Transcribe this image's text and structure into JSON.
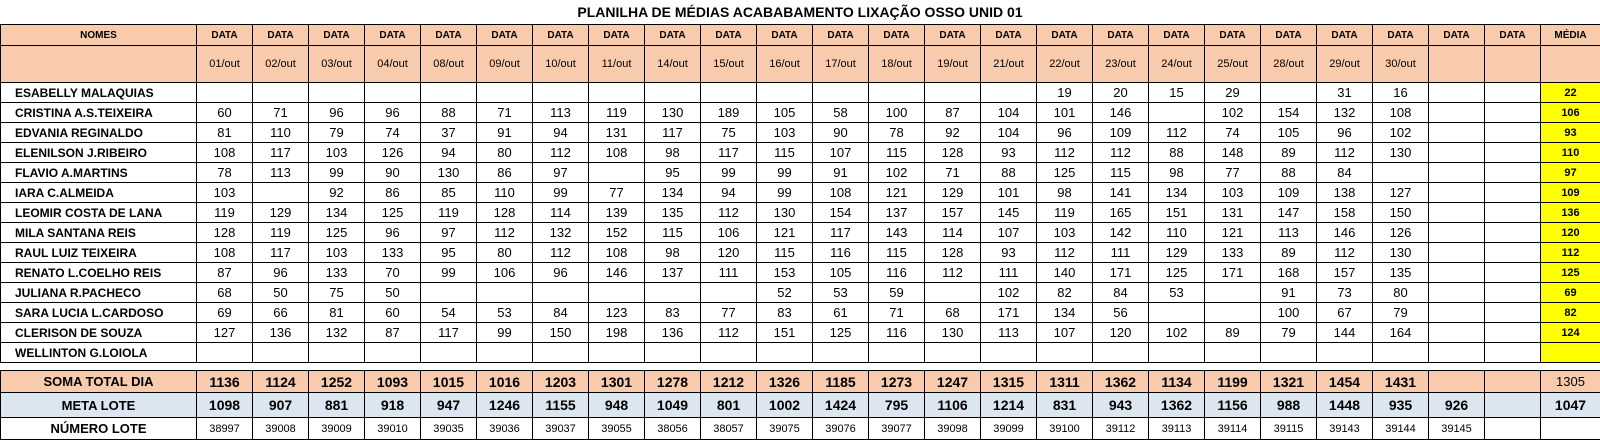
{
  "title": "PLANILHA DE MÉDIAS ACABABAMENTO LIXAÇÃO OSSO UNID 01",
  "header": {
    "names_label": "NOMES",
    "col_label": "DATA",
    "media_label": "MÉDIA",
    "dates": [
      "01/out",
      "02/out",
      "03/out",
      "04/out",
      "08/out",
      "09/out",
      "10/out",
      "11/out",
      "14/out",
      "15/out",
      "16/out",
      "17/out",
      "18/out",
      "19/out",
      "21/out",
      "22/out",
      "23/out",
      "24/out",
      "25/out",
      "28/out",
      "29/out",
      "30/out",
      "",
      ""
    ]
  },
  "employees": [
    {
      "name": "ESABELLY MALAQUIAS",
      "values": [
        "",
        "",
        "",
        "",
        "",
        "",
        "",
        "",
        "",
        "",
        "",
        "",
        "",
        "",
        "",
        "19",
        "20",
        "15",
        "29",
        "",
        "31",
        "16",
        "",
        ""
      ],
      "media": "22"
    },
    {
      "name": "CRISTINA A.S.TEIXEIRA",
      "values": [
        "60",
        "71",
        "96",
        "96",
        "88",
        "71",
        "113",
        "119",
        "130",
        "189",
        "105",
        "58",
        "100",
        "87",
        "104",
        "101",
        "146",
        "",
        "102",
        "154",
        "132",
        "108",
        "",
        ""
      ],
      "media": "106"
    },
    {
      "name": "EDVANIA REGINALDO",
      "values": [
        "81",
        "110",
        "79",
        "74",
        "37",
        "91",
        "94",
        "131",
        "117",
        "75",
        "103",
        "90",
        "78",
        "92",
        "104",
        "96",
        "109",
        "112",
        "74",
        "105",
        "96",
        "102",
        "",
        ""
      ],
      "media": "93"
    },
    {
      "name": "ELENILSON J.RIBEIRO",
      "values": [
        "108",
        "117",
        "103",
        "126",
        "94",
        "80",
        "112",
        "108",
        "98",
        "117",
        "115",
        "107",
        "115",
        "128",
        "93",
        "112",
        "112",
        "88",
        "148",
        "89",
        "112",
        "130",
        "",
        ""
      ],
      "media": "110"
    },
    {
      "name": "FLAVIO A.MARTINS",
      "values": [
        "78",
        "113",
        "99",
        "90",
        "130",
        "86",
        "97",
        "",
        "95",
        "99",
        "99",
        "91",
        "102",
        "71",
        "88",
        "125",
        "115",
        "98",
        "77",
        "88",
        "84",
        "",
        "",
        ""
      ],
      "media": "97"
    },
    {
      "name": "IARA C.ALMEIDA",
      "values": [
        "103",
        "",
        "92",
        "86",
        "85",
        "110",
        "99",
        "77",
        "134",
        "94",
        "99",
        "108",
        "121",
        "129",
        "101",
        "98",
        "141",
        "134",
        "103",
        "109",
        "138",
        "127",
        "",
        ""
      ],
      "media": "109"
    },
    {
      "name": "LEOMIR COSTA DE LANA",
      "values": [
        "119",
        "129",
        "134",
        "125",
        "119",
        "128",
        "114",
        "139",
        "135",
        "112",
        "130",
        "154",
        "137",
        "157",
        "145",
        "119",
        "165",
        "151",
        "131",
        "147",
        "158",
        "150",
        "",
        ""
      ],
      "media": "136"
    },
    {
      "name": "MILA SANTANA REIS",
      "values": [
        "128",
        "119",
        "125",
        "96",
        "97",
        "112",
        "132",
        "152",
        "115",
        "106",
        "121",
        "117",
        "143",
        "114",
        "107",
        "103",
        "142",
        "110",
        "121",
        "113",
        "146",
        "126",
        "",
        ""
      ],
      "media": "120"
    },
    {
      "name": "RAUL LUIZ TEIXEIRA",
      "values": [
        "108",
        "117",
        "103",
        "133",
        "95",
        "80",
        "112",
        "108",
        "98",
        "120",
        "115",
        "116",
        "115",
        "128",
        "93",
        "112",
        "111",
        "129",
        "133",
        "89",
        "112",
        "130",
        "",
        ""
      ],
      "media": "112"
    },
    {
      "name": "RENATO L.COELHO REIS",
      "values": [
        "87",
        "96",
        "133",
        "70",
        "99",
        "106",
        "96",
        "146",
        "137",
        "111",
        "153",
        "105",
        "116",
        "112",
        "111",
        "140",
        "171",
        "125",
        "171",
        "168",
        "157",
        "135",
        "",
        ""
      ],
      "media": "125"
    },
    {
      "name": "JULIANA R.PACHECO",
      "values": [
        "68",
        "50",
        "75",
        "50",
        "",
        "",
        "",
        "",
        "",
        "",
        "52",
        "53",
        "59",
        "",
        "102",
        "82",
        "84",
        "53",
        "",
        "91",
        "73",
        "80",
        "",
        ""
      ],
      "media": "69"
    },
    {
      "name": "SARA LUCIA L.CARDOSO",
      "values": [
        "69",
        "66",
        "81",
        "60",
        "54",
        "53",
        "84",
        "123",
        "83",
        "77",
        "83",
        "61",
        "71",
        "68",
        "171",
        "134",
        "56",
        "",
        "",
        "100",
        "67",
        "79",
        "",
        ""
      ],
      "media": "82"
    },
    {
      "name": "CLERISON DE SOUZA",
      "values": [
        "127",
        "136",
        "132",
        "87",
        "117",
        "99",
        "150",
        "198",
        "136",
        "112",
        "151",
        "125",
        "116",
        "130",
        "113",
        "107",
        "120",
        "102",
        "89",
        "79",
        "144",
        "164",
        "",
        ""
      ],
      "media": "124"
    },
    {
      "name": "WELLINTON G.LOIOLA",
      "values": [
        "",
        "",
        "",
        "",
        "",
        "",
        "",
        "",
        "",
        "",
        "",
        "",
        "",
        "",
        "",
        "",
        "",
        "",
        "",
        "",
        "",
        "",
        "",
        ""
      ],
      "media": ""
    }
  ],
  "soma": {
    "label": "SOMA TOTAL DIA",
    "values": [
      "1136",
      "1124",
      "1252",
      "1093",
      "1015",
      "1016",
      "1203",
      "1301",
      "1278",
      "1212",
      "1326",
      "1185",
      "1273",
      "1247",
      "1315",
      "1311",
      "1362",
      "1134",
      "1199",
      "1321",
      "1454",
      "1431",
      "",
      ""
    ],
    "media": "1305"
  },
  "meta": {
    "label": "META LOTE",
    "values": [
      "1098",
      "907",
      "881",
      "918",
      "947",
      "1246",
      "1155",
      "948",
      "1049",
      "801",
      "1002",
      "1424",
      "795",
      "1106",
      "1214",
      "831",
      "943",
      "1362",
      "1156",
      "988",
      "1448",
      "935",
      "926",
      ""
    ],
    "media": "1047"
  },
  "lote": {
    "label": "NÚMERO LOTE",
    "values": [
      "38997",
      "39008",
      "39009",
      "39010",
      "39035",
      "39036",
      "39037",
      "39055",
      "38056",
      "38057",
      "39075",
      "39076",
      "39077",
      "39098",
      "39099",
      "39100",
      "39112",
      "39113",
      "39114",
      "39115",
      "39143",
      "39144",
      "39145",
      ""
    ],
    "media": ""
  },
  "colors": {
    "header": "#f8cbad",
    "meta_row": "#dce6f1",
    "media_highlight": "#ffff00"
  }
}
